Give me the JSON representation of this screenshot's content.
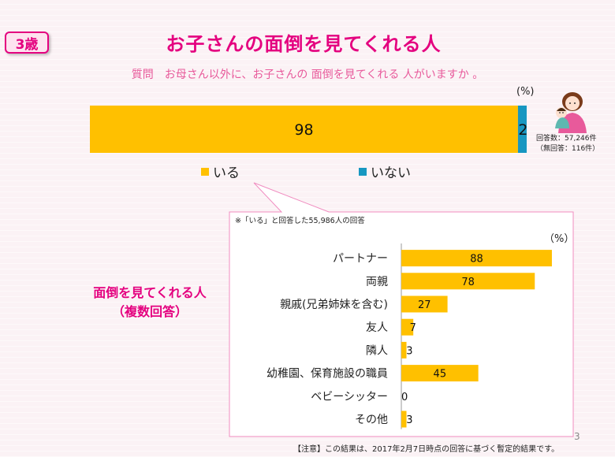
{
  "badge": "3歳",
  "title": "お子さんの面倒を見てくれる人",
  "question": "質問　お母さん以外に、お子さんの 面倒を見てくれる 人がいますか 。",
  "top_unit": "(%)",
  "respondents": {
    "line1": "回答数：57,246件",
    "line2": "（無回答：116件）"
  },
  "side_label": {
    "line1": "面倒を見てくれる人",
    "line2": "（複数回答）"
  },
  "detail_note": "※「いる」と回答した55,986人の回答",
  "detail_unit": "（%）",
  "footnote": "【注意】この結果は、2017年2月7日時点の回答に基づく暫定的結果です。",
  "page_number": "3",
  "colors": {
    "yes": "#ffc000",
    "no": "#1797c1",
    "accent": "#e4007f",
    "callout_border": "#f08cc0"
  },
  "chart_data": [
    {
      "type": "bar",
      "orientation": "horizontal",
      "stacked": true,
      "categories": [
        ""
      ],
      "series": [
        {
          "name": "いる",
          "values": [
            98
          ]
        },
        {
          "name": "いない",
          "values": [
            2
          ]
        }
      ],
      "xlim": [
        0,
        100
      ],
      "unit": "(%)",
      "legend_position": "bottom"
    },
    {
      "type": "bar",
      "orientation": "horizontal",
      "categories": [
        "パートナー",
        "両親",
        "親戚(兄弟姉妹を含む)",
        "友人",
        "隣人",
        "幼稚園、保育施設の職員",
        "ベビーシッター",
        "その他"
      ],
      "values": [
        88,
        78,
        27,
        7,
        3,
        45,
        0,
        3
      ],
      "xlim": [
        0,
        100
      ],
      "unit": "（%）"
    }
  ]
}
